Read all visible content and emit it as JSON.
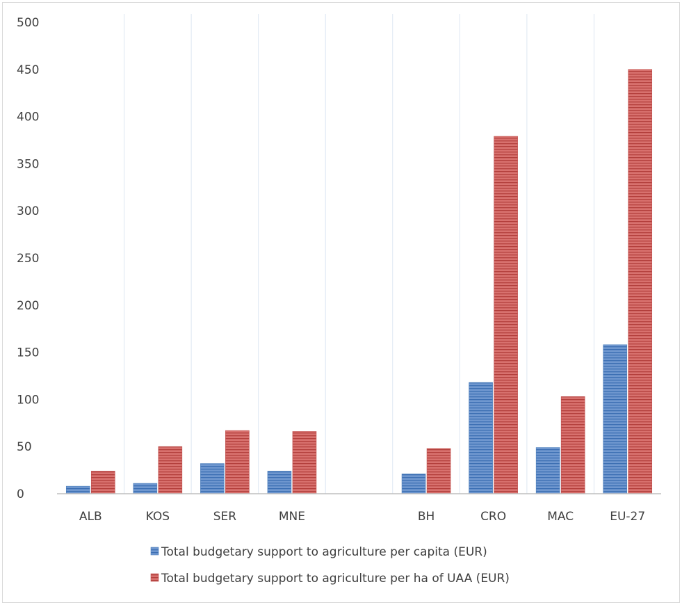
{
  "chart_data": {
    "type": "bar",
    "title": "",
    "xlabel": "",
    "ylabel": "",
    "ylim": [
      0,
      500
    ],
    "yticks": [
      0,
      50,
      100,
      150,
      200,
      250,
      300,
      350,
      400,
      450,
      500
    ],
    "grid": "vertical category separators",
    "legend_position": "bottom",
    "categories": [
      "ALB",
      "KOS",
      "SER",
      "MNE",
      "",
      "BH",
      "CRO",
      "MAC",
      "EU-27"
    ],
    "series": [
      {
        "name": "Total budgetary support to agriculture per capita (EUR)",
        "color": "#4f81bd",
        "values": [
          8,
          11,
          32,
          24,
          0,
          21,
          118,
          49,
          158
        ]
      },
      {
        "name": "Total budgetary support to agriculture per ha of UAA (EUR)",
        "color": "#c0504d",
        "values": [
          24,
          50,
          67,
          66,
          0,
          48,
          379,
          103,
          450
        ]
      }
    ]
  }
}
